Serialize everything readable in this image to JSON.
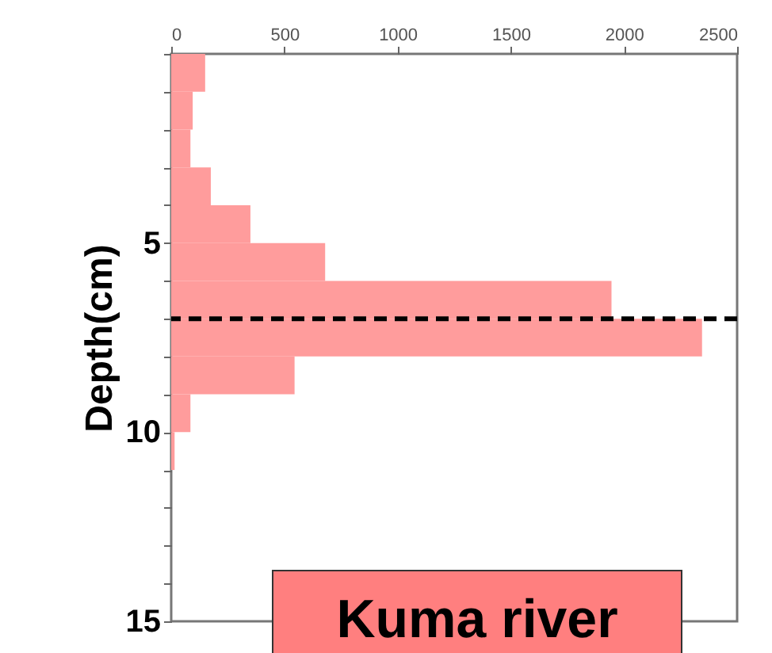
{
  "chart_data": {
    "type": "histogram",
    "orientation": "horizontal",
    "ylabel": "Depth(cm)",
    "bins": [
      0,
      1,
      2,
      3,
      4,
      5,
      6,
      7,
      8,
      9,
      10,
      11
    ],
    "values": [
      150,
      95,
      85,
      175,
      350,
      680,
      1945,
      2345,
      545,
      85,
      15
    ],
    "color": "#ff9c9c",
    "xlim": [
      0,
      2500
    ],
    "xticks": [
      0,
      500,
      1000,
      1500,
      2000,
      2500
    ],
    "ylim": [
      15,
      0
    ],
    "yticks": [
      {
        "value": 0,
        "label": null
      },
      {
        "value": 1,
        "label": null
      },
      {
        "value": 2,
        "label": null
      },
      {
        "value": 3,
        "label": null
      },
      {
        "value": 4,
        "label": null
      },
      5,
      {
        "value": 6,
        "label": null
      },
      {
        "value": 7,
        "label": null
      },
      {
        "value": 8,
        "label": null
      },
      {
        "value": 9,
        "label": null
      },
      10,
      {
        "value": 11,
        "label": null
      },
      {
        "value": 12,
        "label": null
      },
      {
        "value": 13,
        "label": null
      },
      {
        "value": 14,
        "label": null
      },
      15
    ],
    "ref_lines": [
      {
        "axis": "y",
        "value": 7,
        "color": "#000000",
        "line_style": "dashed"
      }
    ],
    "annotations": [
      "Kuma river"
    ],
    "grid": false
  }
}
